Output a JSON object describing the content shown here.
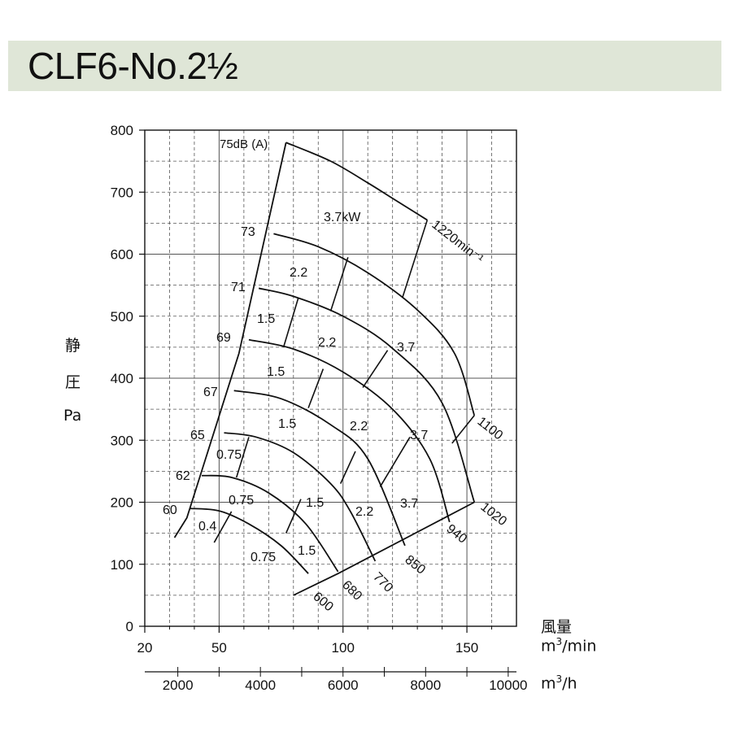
{
  "header": {
    "title": "CLF6-No.2½"
  },
  "colors": {
    "title_bg": "#dfe6d7",
    "line": "#111111",
    "grid": "#555555"
  },
  "axes": {
    "ylabel_chars": [
      "静",
      "圧",
      "Pa"
    ],
    "xlabel_main": "風量",
    "xlabel_unit_min_pre": "m",
    "xlabel_unit_min_sup": "3",
    "xlabel_unit_min_post": "/min",
    "xlabel_unit_h_pre": "m",
    "xlabel_unit_h_sup": "3",
    "xlabel_unit_h_post": "/h"
  },
  "chart_data": {
    "type": "line",
    "title": "CLF6-No.2½",
    "xlabel": "風量 m3/min",
    "ylabel": "静圧 Pa",
    "xlim": [
      20,
      170
    ],
    "ylim": [
      0,
      800
    ],
    "grid": true,
    "x_ticks": [
      "20",
      "50",
      "100",
      "150"
    ],
    "y_ticks": [
      "0",
      "100",
      "200",
      "300",
      "400",
      "500",
      "600",
      "700",
      "800"
    ],
    "secondary_x_ticks": [
      "2000",
      "4000",
      "6000",
      "8000",
      "10000"
    ],
    "speed_curves": [
      {
        "name": "1220min⁻¹",
        "x": [
          77,
          95,
          110,
          120,
          134
        ],
        "y": [
          780,
          750,
          715,
          690,
          655
        ]
      },
      {
        "name": "1100",
        "x": [
          72,
          90,
          110,
          130,
          145,
          153
        ],
        "y": [
          633,
          612,
          570,
          510,
          440,
          340
        ]
      },
      {
        "name": "1020",
        "x": [
          66,
          80,
          100,
          120,
          140,
          153
        ],
        "y": [
          545,
          532,
          500,
          448,
          360,
          200
        ]
      },
      {
        "name": "940",
        "x": [
          62,
          80,
          100,
          120,
          135,
          143
        ],
        "y": [
          462,
          447,
          410,
          350,
          270,
          168
        ]
      },
      {
        "name": "850",
        "x": [
          56,
          75,
          95,
          110,
          125
        ],
        "y": [
          380,
          367,
          325,
          270,
          130
        ]
      },
      {
        "name": "770",
        "x": [
          52,
          65,
          80,
          95,
          103,
          113
        ],
        "y": [
          312,
          305,
          280,
          230,
          185,
          105
        ]
      },
      {
        "name": "680",
        "x": [
          43,
          55,
          70,
          85,
          98
        ],
        "y": [
          243,
          240,
          215,
          165,
          88
        ]
      },
      {
        "name": "600",
        "x": [
          38,
          50,
          62,
          75,
          86
        ],
        "y": [
          190,
          186,
          165,
          130,
          85
        ]
      }
    ],
    "power_lines": [
      {
        "name": "3.7kW",
        "x": [
          134,
          124
        ],
        "y": [
          655,
          530
        ]
      },
      {
        "name": "2.2",
        "x": [
          102,
          95
        ],
        "y": [
          595,
          508
        ]
      },
      {
        "name": "1.5",
        "x": [
          82,
          76
        ],
        "y": [
          530,
          450
        ]
      },
      {
        "name": "2.2",
        "x": [
          118,
          108
        ],
        "y": [
          445,
          385
        ]
      },
      {
        "name": "1.5",
        "x": [
          92,
          86
        ],
        "y": [
          415,
          352
        ]
      },
      {
        "name": "3.7",
        "x": [
          153,
          144
        ],
        "y": [
          340,
          295
        ]
      },
      {
        "name": "2.2",
        "x": [
          105,
          99
        ],
        "y": [
          282,
          230
        ]
      },
      {
        "name": "0.75",
        "x": [
          62,
          57
        ],
        "y": [
          305,
          240
        ]
      },
      {
        "name": "3.7",
        "x": [
          127,
          115
        ],
        "y": [
          305,
          225
        ]
      },
      {
        "name": "1.5",
        "x": [
          83,
          77
        ],
        "y": [
          205,
          150
        ]
      },
      {
        "name": "0.4",
        "x": [
          55,
          48
        ],
        "y": [
          185,
          135
        ]
      }
    ],
    "outer_boundary": {
      "x": [
        77,
        58,
        37,
        32
      ],
      "y": [
        780,
        440,
        175,
        143
      ]
    },
    "bottom_boundary": {
      "x": [
        80,
        98,
        153
      ],
      "y": [
        50,
        85,
        200
      ]
    },
    "db_labels": [
      "75dB (A)",
      "73",
      "71",
      "69",
      "67",
      "65",
      "62",
      "60"
    ],
    "kw_labels": [
      "3.7kW",
      "2.2",
      "1.5",
      "2.2",
      "3.7",
      "1.5",
      "2.2",
      "3.7",
      "0.75",
      "1.5",
      "2.2",
      "3.7",
      "0.75",
      "1.5",
      "0.4",
      "0.75",
      "1.5"
    ]
  }
}
